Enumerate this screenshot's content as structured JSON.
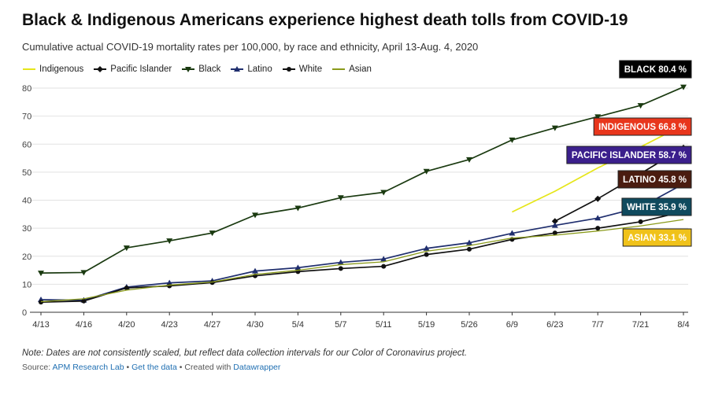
{
  "header": {
    "title": "Black & Indigenous Americans experience highest death tolls from COVID-19",
    "subtitle": "Cumulative actual COVID-19 mortality rates per 100,000, by race and ethnicity, April 13-Aug. 4, 2020"
  },
  "footer": {
    "note": "Note: Dates are not consistently scaled, but reflect data collection intervals for our Color of Coronavirus project.",
    "source_prefix": "Source: ",
    "source_link": "APM Research Lab",
    "sep1": " • ",
    "data_link": "Get the data",
    "sep2": " • Created with ",
    "tool_link": "Datawrapper"
  },
  "chart_data": {
    "type": "line",
    "categories": [
      "4/13",
      "4/16",
      "4/20",
      "4/23",
      "4/27",
      "4/30",
      "5/4",
      "5/7",
      "5/11",
      "5/19",
      "5/26",
      "6/9",
      "6/23",
      "7/7",
      "7/21",
      "8/4"
    ],
    "ylim": [
      0,
      80
    ],
    "yticks": [
      0,
      10,
      20,
      30,
      40,
      50,
      60,
      70,
      80
    ],
    "grid": true,
    "legend_position": "top-left",
    "series": [
      {
        "name": "Indigenous",
        "color": "#e6e61a",
        "marker": "none",
        "values": [
          null,
          null,
          null,
          null,
          null,
          null,
          null,
          null,
          null,
          null,
          null,
          35.8,
          43.2,
          51.5,
          59.0,
          66.8
        ]
      },
      {
        "name": "Pacific Islander",
        "color": "#111111",
        "marker": "diamond",
        "values": [
          null,
          null,
          null,
          null,
          null,
          null,
          null,
          null,
          null,
          null,
          null,
          null,
          32.5,
          40.5,
          49.5,
          58.7
        ]
      },
      {
        "name": "Black",
        "color": "#1a3a10",
        "marker": "triangle-down",
        "values": [
          14.0,
          14.2,
          23.0,
          25.5,
          28.3,
          34.7,
          37.2,
          40.9,
          42.8,
          50.3,
          54.5,
          61.5,
          65.8,
          69.8,
          73.8,
          80.4
        ]
      },
      {
        "name": "Latino",
        "color": "#1f2e6e",
        "marker": "triangle-up",
        "values": [
          4.5,
          4.3,
          9.0,
          10.5,
          11.2,
          14.7,
          15.9,
          17.8,
          19.0,
          22.8,
          24.8,
          28.2,
          31.0,
          33.6,
          37.5,
          45.8
        ]
      },
      {
        "name": "White",
        "color": "#111111",
        "marker": "circle",
        "values": [
          3.6,
          4.0,
          8.7,
          9.4,
          10.6,
          13.0,
          14.5,
          15.6,
          16.4,
          20.6,
          22.5,
          26.0,
          28.3,
          30.0,
          32.3,
          35.9
        ]
      },
      {
        "name": "Asian",
        "color": "#8a9a1a",
        "marker": "none",
        "values": [
          3.8,
          4.8,
          7.9,
          9.7,
          10.8,
          13.5,
          15.0,
          17.0,
          18.0,
          21.8,
          23.8,
          26.5,
          27.5,
          29.0,
          30.8,
          33.1
        ]
      }
    ],
    "labels": [
      {
        "text": "BLACK 80.4 %",
        "bg": "#000000",
        "fg": "#ffffff",
        "value": 80.4
      },
      {
        "text": "INDIGENOUS 66.8 %",
        "bg": "#e8361c",
        "fg": "#ffffff",
        "value": 66.8
      },
      {
        "text": "PACIFIC ISLANDER 58.7 %",
        "bg": "#3b1f8c",
        "fg": "#ffffff",
        "value": 58.7
      },
      {
        "text": "LATINO 45.8 %",
        "bg": "#4a1c10",
        "fg": "#ffffff",
        "value": 45.8
      },
      {
        "text": "WHITE 35.9 %",
        "bg": "#0f4a5e",
        "fg": "#ffffff",
        "value": 35.9
      },
      {
        "text": "ASIAN 33.1 %",
        "bg": "#f0c21a",
        "fg": "#ffffff",
        "value": 33.1
      }
    ]
  }
}
